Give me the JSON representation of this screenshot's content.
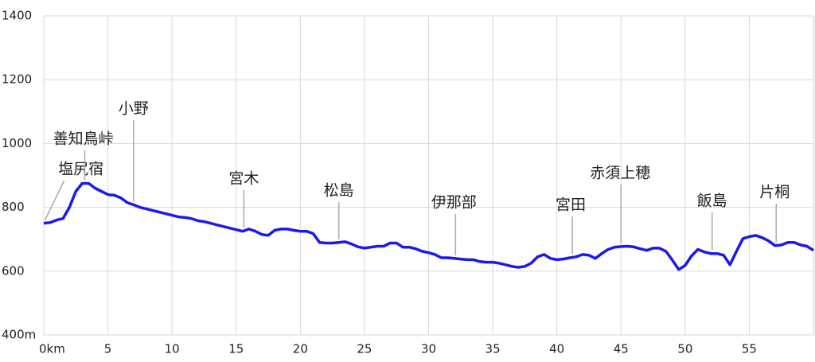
{
  "chart_data": {
    "type": "line",
    "x": [
      0,
      0.5,
      1,
      1.5,
      2,
      2.5,
      3,
      3.5,
      4,
      4.5,
      5,
      5.5,
      6,
      6.5,
      7,
      7.5,
      8,
      8.5,
      9,
      9.5,
      10,
      10.5,
      11,
      11.5,
      12,
      12.5,
      13,
      13.5,
      14,
      14.5,
      15,
      15.5,
      16,
      16.5,
      17,
      17.5,
      18,
      18.5,
      19,
      19.5,
      20,
      20.5,
      21,
      21.5,
      22,
      22.5,
      23,
      23.5,
      24,
      24.5,
      25,
      25.5,
      26,
      26.5,
      27,
      27.5,
      28,
      28.5,
      29,
      29.5,
      30,
      30.5,
      31,
      31.5,
      32,
      32.5,
      33,
      33.5,
      34,
      34.5,
      35,
      35.5,
      36,
      36.5,
      37,
      37.5,
      38,
      38.5,
      39,
      39.5,
      40,
      40.5,
      41,
      41.5,
      42,
      42.5,
      43,
      43.5,
      44,
      44.5,
      45,
      45.5,
      46,
      46.5,
      47,
      47.5,
      48,
      48.5,
      49,
      49.5,
      50,
      50.5,
      51,
      51.5,
      52,
      52.5,
      53,
      53.5,
      54,
      54.5,
      55,
      55.5,
      56,
      56.5,
      57,
      57.5,
      58,
      58.5,
      59,
      59.5,
      60
    ],
    "series": [
      {
        "color": "#1a1aee",
        "values": [
          750,
          752,
          760,
          765,
          800,
          850,
          875,
          875,
          860,
          850,
          840,
          838,
          830,
          815,
          808,
          800,
          795,
          790,
          785,
          780,
          775,
          770,
          768,
          765,
          758,
          755,
          750,
          745,
          740,
          735,
          730,
          725,
          732,
          725,
          715,
          712,
          728,
          732,
          732,
          728,
          725,
          725,
          718,
          690,
          688,
          688,
          690,
          692,
          685,
          676,
          672,
          675,
          678,
          678,
          688,
          688,
          675,
          675,
          670,
          662,
          658,
          652,
          642,
          642,
          640,
          638,
          636,
          636,
          630,
          628,
          628,
          625,
          620,
          615,
          612,
          615,
          625,
          645,
          652,
          640,
          636,
          638,
          642,
          645,
          652,
          650,
          640,
          655,
          668,
          675,
          677,
          678,
          676,
          670,
          665,
          672,
          672,
          662,
          635,
          605,
          618,
          648,
          668,
          660,
          655,
          655,
          650,
          620,
          662,
          702,
          708,
          712,
          705,
          695,
          680,
          682,
          690,
          690,
          682,
          678,
          665
        ]
      }
    ],
    "xlim": [
      0,
      60
    ],
    "xticks": [
      {
        "value": 0,
        "label": "0km"
      },
      5,
      10,
      15,
      20,
      25,
      30,
      35,
      40,
      45,
      50,
      55
    ],
    "ylim": [
      400,
      1400
    ],
    "yticks": [
      {
        "value": 400,
        "label": "400m"
      },
      600,
      800,
      1000,
      1200,
      1400
    ],
    "grid": true,
    "annotations": [
      {
        "text": "塩尻宿",
        "x": 0.1
      },
      {
        "text": "善知鳥峠",
        "x": 3.2
      },
      {
        "text": "小野",
        "x": 7.0
      },
      {
        "text": "宮木",
        "x": 15.6
      },
      {
        "text": "松島",
        "x": 23.0
      },
      {
        "text": "伊那部",
        "x": 32.1
      },
      {
        "text": "宮田",
        "x": 41.2
      },
      {
        "text": "赤須上穂",
        "x": 45.0
      },
      {
        "text": "飯島",
        "x": 52.1
      },
      {
        "text": "片桐",
        "x": 57.1
      }
    ]
  }
}
